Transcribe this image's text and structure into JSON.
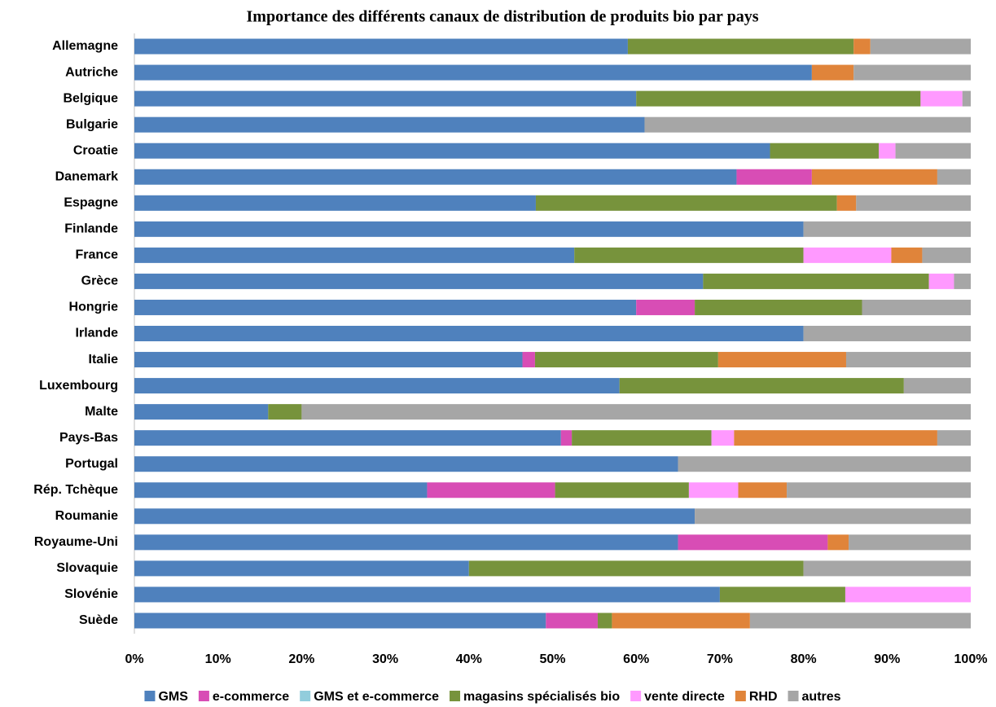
{
  "chart_data": {
    "type": "stacked-bar-horizontal",
    "title": "Importance des différents canaux de distribution de produits bio par pays",
    "categories": [
      "Allemagne",
      "Autriche",
      "Belgique",
      "Bulgarie",
      "Croatie",
      "Danemark",
      "Espagne",
      "Finlande",
      "France",
      "Grèce",
      "Hongrie",
      "Irlande",
      "Italie",
      "Luxembourg",
      "Malte",
      "Pays-Bas",
      "Portugal",
      "Rép. Tchèque",
      "Roumanie",
      "Royaume-Uni",
      "Slovaquie",
      "Slovénie",
      "Suède"
    ],
    "series": [
      {
        "name": "GMS",
        "color": "#4f81bd",
        "values": [
          59,
          81,
          60,
          61,
          76,
          72,
          48,
          80,
          52.6,
          68,
          60,
          80,
          46.4,
          58,
          16,
          51,
          65,
          35,
          67,
          65,
          40,
          70,
          49.2
        ]
      },
      {
        "name": "e-commerce",
        "color": "#d84db5",
        "values": [
          0,
          0,
          0,
          0,
          0,
          9,
          0,
          0,
          0,
          0,
          7,
          0,
          1.5,
          0,
          0,
          1.3,
          0,
          15.3,
          0,
          17.9,
          0,
          0,
          6.2
        ]
      },
      {
        "name": "GMS et e-commerce",
        "color": "#92cddc",
        "values": [
          0,
          0,
          0,
          0,
          0,
          0,
          0,
          0,
          0,
          0,
          0,
          0,
          0,
          0,
          0,
          0,
          0,
          0,
          0,
          0,
          0,
          0,
          0
        ]
      },
      {
        "name": "magasins spécialisés bio",
        "color": "#77933c",
        "values": [
          27,
          0,
          34,
          0,
          13,
          0,
          36,
          0,
          27.4,
          27,
          20,
          0,
          21.9,
          34,
          4,
          16.7,
          0,
          16,
          0,
          0,
          40,
          15,
          1.7
        ]
      },
      {
        "name": "vente directe",
        "color": "#ff99ff",
        "values": [
          0,
          0,
          5,
          0,
          2,
          0,
          0,
          0,
          10.5,
          3,
          0,
          0,
          0,
          0,
          0,
          2.7,
          0,
          5.9,
          0,
          0,
          0,
          15,
          0
        ]
      },
      {
        "name": "RHD",
        "color": "#e0843a",
        "values": [
          2,
          5,
          0,
          0,
          0,
          15,
          2.3,
          0,
          3.7,
          0,
          0,
          0,
          15.3,
          0,
          0,
          24.3,
          0,
          5.8,
          0,
          2.5,
          0,
          0,
          16.5
        ]
      },
      {
        "name": "autres",
        "color": "#a6a6a6",
        "values": [
          12,
          14,
          1,
          39,
          9,
          4,
          13.7,
          20,
          5.8,
          2,
          13,
          20,
          14.9,
          8,
          80,
          4,
          35,
          22,
          33,
          14.6,
          20,
          0,
          26.4
        ]
      }
    ],
    "xlim": [
      0,
      100
    ],
    "xticks": [
      {
        "value": 0,
        "label": "0%"
      },
      {
        "value": 10,
        "label": "10%"
      },
      {
        "value": 20,
        "label": "20%"
      },
      {
        "value": 30,
        "label": "30%"
      },
      {
        "value": 40,
        "label": "40%"
      },
      {
        "value": 50,
        "label": "50%"
      },
      {
        "value": 60,
        "label": "60%"
      },
      {
        "value": 70,
        "label": "70%"
      },
      {
        "value": 80,
        "label": "80%"
      },
      {
        "value": 90,
        "label": "90%"
      },
      {
        "value": 100,
        "label": "100%"
      }
    ],
    "grid": false,
    "legend": "bottom"
  }
}
